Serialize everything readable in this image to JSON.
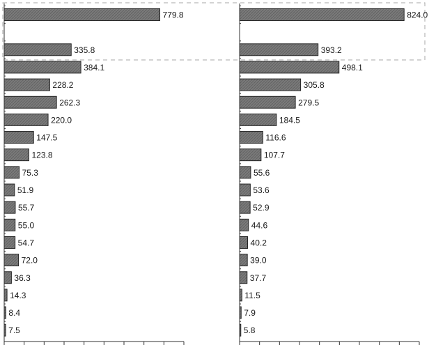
{
  "chart_data": [
    {
      "type": "bar",
      "orientation": "horizontal",
      "values": [
        779.8,
        null,
        335.8,
        384.1,
        228.2,
        262.3,
        220.0,
        147.5,
        123.8,
        75.3,
        51.9,
        55.7,
        55.0,
        54.7,
        72.0,
        36.3,
        14.3,
        8.4,
        7.5
      ],
      "value_labels": [
        "779.8",
        "",
        "335.8",
        "384.1",
        "228.2",
        "262.3",
        "220.0",
        "147.5",
        "123.8",
        "75.3",
        "51.9",
        "55.7",
        "55.0",
        "54.7",
        "72.0",
        "36.3",
        "14.3",
        "8.4",
        "7.5"
      ],
      "xlim": [
        0,
        900
      ],
      "highlight_rows": [
        0,
        2
      ]
    },
    {
      "type": "bar",
      "orientation": "horizontal",
      "values": [
        824.0,
        null,
        393.2,
        498.1,
        305.8,
        279.5,
        184.5,
        116.6,
        107.7,
        55.6,
        53.6,
        52.9,
        44.6,
        40.2,
        39.0,
        37.7,
        11.5,
        7.9,
        5.8
      ],
      "value_labels": [
        "824.0",
        "",
        "393.2",
        "498.1",
        "305.8",
        "279.5",
        "184.5",
        "116.6",
        "107.7",
        "55.6",
        "53.6",
        "52.9",
        "44.6",
        "40.2",
        "39.0",
        "37.7",
        "11.5",
        "7.9",
        "5.8"
      ],
      "xlim": [
        0,
        900
      ],
      "highlight_rows": [
        0,
        2
      ]
    }
  ],
  "colors": {
    "bar_fill": "#7a7a7a",
    "bar_stroke": "#1a1a1a",
    "axis": "#333333",
    "highlight_border": "#a7a7a7",
    "text": "#1a1a1a"
  },
  "grid": false,
  "legend": "none"
}
